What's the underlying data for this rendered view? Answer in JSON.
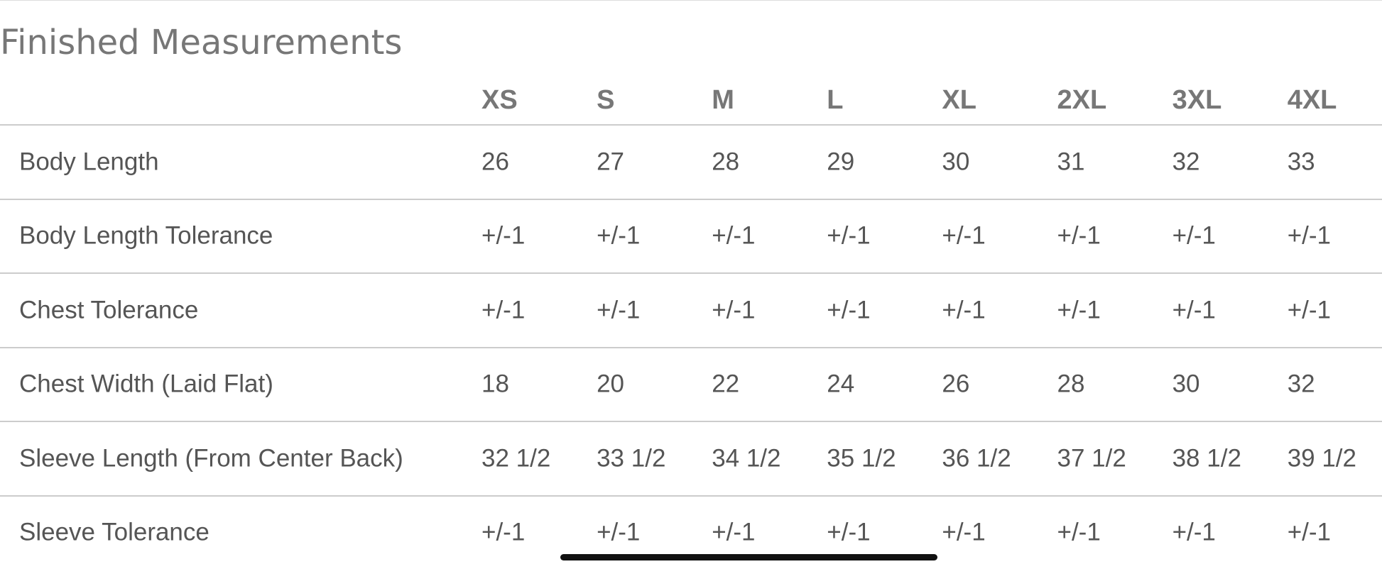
{
  "header": {
    "title": "Finished Measurements"
  },
  "table": {
    "columns": [
      "XS",
      "S",
      "M",
      "L",
      "XL",
      "2XL",
      "3XL",
      "4XL"
    ],
    "rows": [
      {
        "label": "Body Length",
        "values": [
          "26",
          "27",
          "28",
          "29",
          "30",
          "31",
          "32",
          "33"
        ]
      },
      {
        "label": "Body Length Tolerance",
        "values": [
          "+/-1",
          "+/-1",
          "+/-1",
          "+/-1",
          "+/-1",
          "+/-1",
          "+/-1",
          "+/-1"
        ]
      },
      {
        "label": "Chest Tolerance",
        "values": [
          "+/-1",
          "+/-1",
          "+/-1",
          "+/-1",
          "+/-1",
          "+/-1",
          "+/-1",
          "+/-1"
        ]
      },
      {
        "label": "Chest Width (Laid Flat)",
        "values": [
          "18",
          "20",
          "22",
          "24",
          "26",
          "28",
          "30",
          "32"
        ]
      },
      {
        "label": "Sleeve Length (From Center Back)",
        "values": [
          "32 1/2",
          "33 1/2",
          "34 1/2",
          "35 1/2",
          "36 1/2",
          "37 1/2",
          "38 1/2",
          "39 1/2"
        ]
      },
      {
        "label": "Sleeve Tolerance",
        "values": [
          "+/-1",
          "+/-1",
          "+/-1",
          "+/-1",
          "+/-1",
          "+/-1",
          "+/-1",
          "+/-1"
        ]
      }
    ]
  }
}
